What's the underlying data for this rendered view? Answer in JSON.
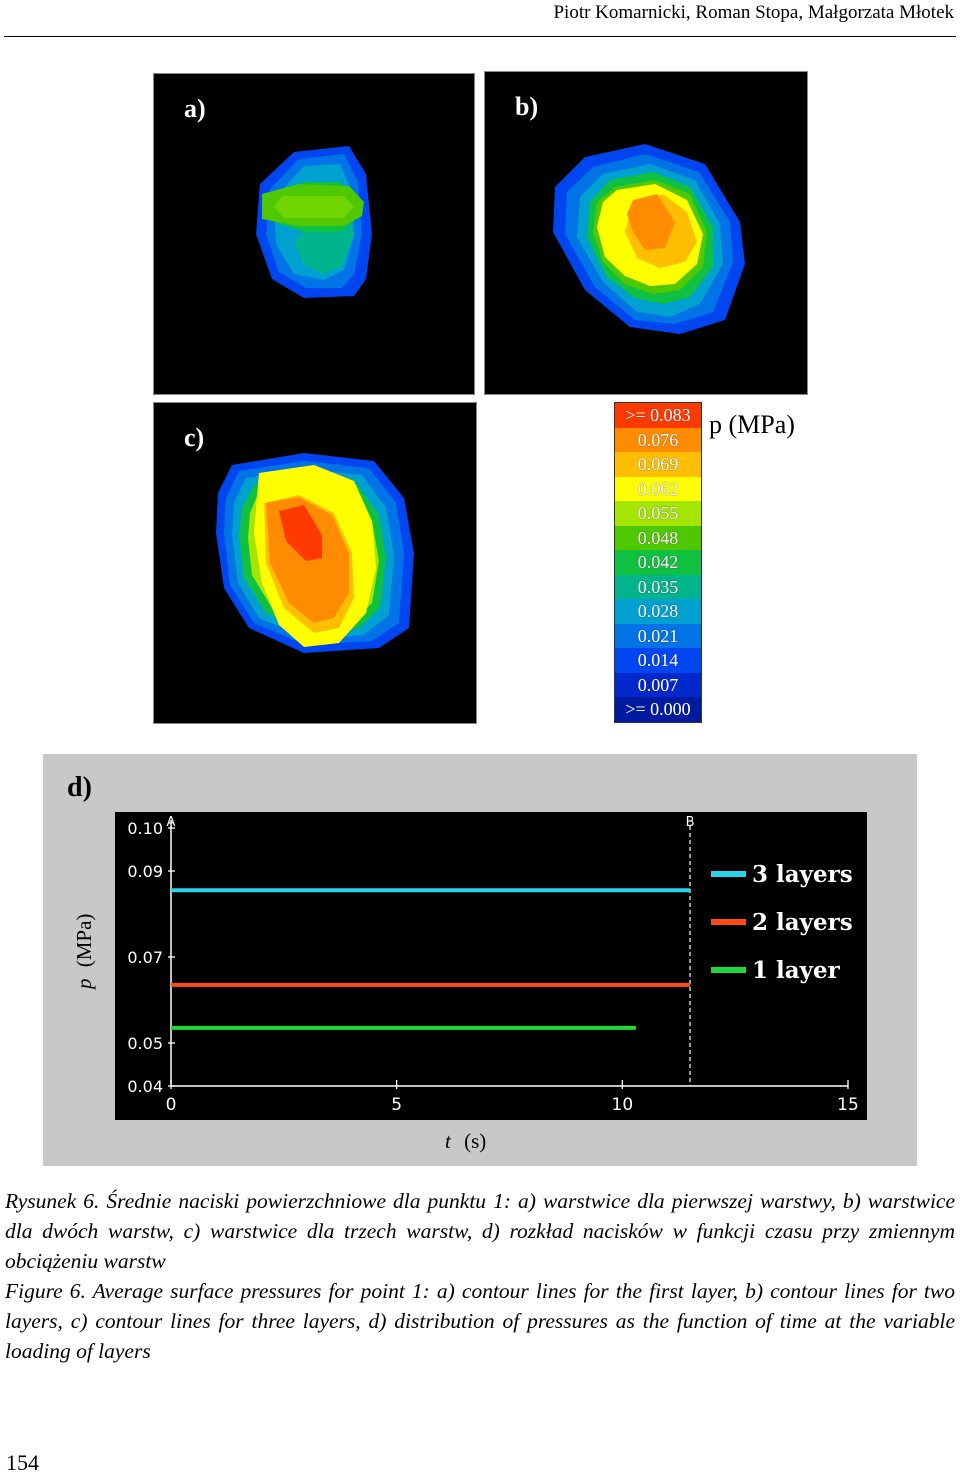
{
  "header": {
    "authors": "Piotr Komarnicki, Roman Stopa, Małgorzata Młotek"
  },
  "panels": {
    "a": {
      "label": "a)"
    },
    "b": {
      "label": "b)"
    },
    "c": {
      "label": "c)"
    }
  },
  "pressure_scale": {
    "title": "p (MPa)",
    "levels": [
      {
        "label": ">= 0.083",
        "color": "#ff3a00"
      },
      {
        "label": "0.076",
        "color": "#ff8c00"
      },
      {
        "label": "0.069",
        "color": "#ffbf00"
      },
      {
        "label": "0.062",
        "color": "#ffff00"
      },
      {
        "label": "0.055",
        "color": "#a5e600"
      },
      {
        "label": "0.048",
        "color": "#50c800"
      },
      {
        "label": "0.042",
        "color": "#10c040"
      },
      {
        "label": "0.035",
        "color": "#00b48c"
      },
      {
        "label": "0.028",
        "color": "#00a0d0"
      },
      {
        "label": "0.021",
        "color": "#0073e6"
      },
      {
        "label": "0.014",
        "color": "#0046f0"
      },
      {
        "label": "0.007",
        "color": "#0028cc"
      },
      {
        "label": ">= 0.000",
        "color": "#001aa0"
      }
    ]
  },
  "chart_data": {
    "type": "line",
    "panel_label": "d)",
    "xlabel_symbol": "t",
    "xlabel_unit": "(s)",
    "ylabel_symbol": "p",
    "ylabel_unit": "(MPa)",
    "xlim": [
      0,
      15
    ],
    "ylim": [
      0.04,
      0.1
    ],
    "x_ticks": [
      "0",
      "5",
      "10",
      "15"
    ],
    "x_tick_values": [
      0,
      5,
      10,
      15
    ],
    "y_ticks": [
      "0.04",
      "0.05",
      "0.07",
      "0.09",
      "0.10"
    ],
    "y_tick_values": [
      0.04,
      0.05,
      0.07,
      0.09,
      0.1
    ],
    "markers": [
      {
        "label": "A",
        "x": 0
      },
      {
        "label": "B",
        "x": 11.5
      }
    ],
    "series": [
      {
        "name": "3 layers",
        "color": "#29d4e8",
        "x": [
          0,
          11.5
        ],
        "values": [
          0.0855,
          0.0855
        ]
      },
      {
        "name": "2 layers",
        "color": "#ff4a16",
        "x": [
          0,
          11.5
        ],
        "values": [
          0.0635,
          0.0635
        ]
      },
      {
        "name": "1 layer",
        "color": "#1fd83c",
        "x": [
          0,
          10.3
        ],
        "values": [
          0.0535,
          0.0535
        ]
      }
    ],
    "legend_position": "right",
    "background": "#000000"
  },
  "caption": {
    "polish": "Rysunek 6. Średnie naciski powierzchniowe dla punktu 1: a) warstwice dla pierwszej warstwy, b) warstwice dla dwóch warstw, c) warstwice dla trzech warstw, d) rozkład nacisków w funkcji czasu przy zmiennym obciążeniu warstw",
    "english": "Figure 6. Average surface pressures for point 1: a) contour lines for the first layer, b) contour lines for two layers, c) contour lines for three layers, d) distribution of pressures as the function of time at the variable loading of layers"
  },
  "page_number": "154"
}
